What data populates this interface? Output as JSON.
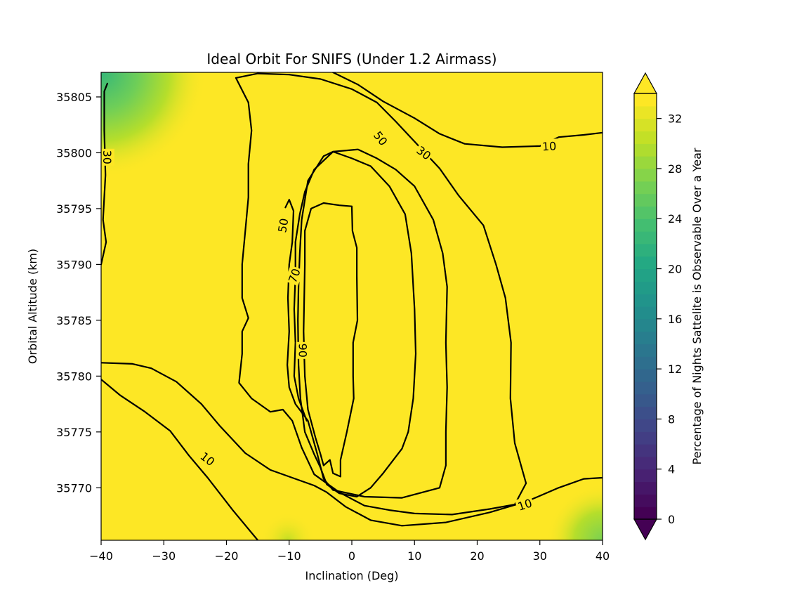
{
  "chart_data": {
    "type": "heatmap",
    "subtype": "filled-contour",
    "title": "Ideal Orbit For SNIFS (Under 1.2 Airmass)",
    "xlabel": "Inclination (Deg)",
    "ylabel": "Orbital Altitude (km)",
    "xlim": [
      -40,
      40
    ],
    "ylim": [
      35765.3,
      35807.2
    ],
    "xticks": [
      -40,
      -30,
      -20,
      -10,
      0,
      10,
      20,
      30,
      40
    ],
    "yticks": [
      35770,
      35775,
      35780,
      35785,
      35790,
      35795,
      35800,
      35805
    ],
    "colorbar": {
      "label": "Percentage of Nights Sattelite is Observable Over a Year",
      "ticks": [
        0,
        4,
        8,
        12,
        16,
        20,
        24,
        28,
        32
      ],
      "range": [
        0,
        34
      ],
      "colormap": "viridis",
      "extend": "both"
    },
    "dominant_fill_value": 34,
    "low_value_corners": [
      {
        "corner": "top-left",
        "value": 24
      },
      {
        "corner": "bottom-right",
        "value": 30
      }
    ],
    "contour_levels": [
      10,
      30,
      50,
      70,
      90
    ],
    "contours": [
      {
        "level": 10,
        "points": [
          [
            -40,
            35781.2
          ],
          [
            -35,
            35781.1
          ],
          [
            -32,
            35780.7
          ],
          [
            -28,
            35779.5
          ],
          [
            -24,
            35777.5
          ],
          [
            -21,
            35775.5
          ],
          [
            -17,
            35773.1
          ],
          [
            -13,
            35771.6
          ],
          [
            -9,
            35770.8
          ],
          [
            -6,
            35770.2
          ],
          [
            -4,
            35769.6
          ],
          [
            -1,
            35768.3
          ],
          [
            3,
            35767.1
          ],
          [
            8,
            35766.6
          ],
          [
            15,
            35766.9
          ],
          [
            22,
            35767.8
          ],
          [
            28,
            35768.8
          ],
          [
            33,
            35770.0
          ],
          [
            37,
            35770.8
          ],
          [
            40,
            35770.9
          ]
        ]
      },
      {
        "level": 10,
        "points": [
          [
            -40,
            35779.7
          ],
          [
            -37,
            35778.3
          ],
          [
            -33,
            35776.8
          ],
          [
            -29,
            35775.1
          ],
          [
            -26,
            35772.9
          ],
          [
            -23,
            35770.9
          ],
          [
            -19,
            35768.0
          ],
          [
            -15,
            35765.3
          ]
        ]
      },
      {
        "level": 10,
        "points": [
          [
            -3,
            35807.2
          ],
          [
            1,
            35806.1
          ],
          [
            5,
            35804.6
          ],
          [
            10,
            35803.1
          ],
          [
            14,
            35801.7
          ],
          [
            18,
            35800.8
          ],
          [
            24,
            35800.5
          ],
          [
            30,
            35800.6
          ],
          [
            33,
            35801.4
          ],
          [
            37,
            35801.6
          ],
          [
            40,
            35801.8
          ]
        ]
      },
      {
        "level": 30,
        "points": [
          [
            -39,
            35806.2
          ],
          [
            -39.5,
            35805.5
          ],
          [
            -39.5,
            35802
          ],
          [
            -39.3,
            35798
          ],
          [
            -39.7,
            35794
          ],
          [
            -39.2,
            35792
          ],
          [
            -40,
            35790
          ]
        ]
      },
      {
        "level": 30,
        "points": [
          [
            -18.5,
            35806.7
          ],
          [
            -15,
            35807.1
          ],
          [
            -10,
            35807.0
          ],
          [
            -5,
            35806.6
          ],
          [
            0,
            35805.7
          ],
          [
            4,
            35804.5
          ],
          [
            7,
            35802.8
          ],
          [
            10,
            35801.0
          ],
          [
            14,
            35798.6
          ],
          [
            17,
            35796.2
          ],
          [
            21,
            35793.5
          ],
          [
            23,
            35790.0
          ],
          [
            24.5,
            35787.0
          ],
          [
            25.4,
            35783.0
          ],
          [
            25.3,
            35778.0
          ],
          [
            26.0,
            35774.0
          ],
          [
            27.8,
            35770.4
          ],
          [
            26,
            35768.5
          ],
          [
            22,
            35768.1
          ],
          [
            16,
            35767.6
          ],
          [
            10,
            35767.7
          ],
          [
            6,
            35768.0
          ],
          [
            2,
            35768.4
          ],
          [
            -2,
            35769.6
          ],
          [
            -6,
            35771.2
          ],
          [
            -8,
            35773.6
          ],
          [
            -9.5,
            35776.0
          ],
          [
            -11,
            35777.0
          ],
          [
            -13,
            35776.8
          ],
          [
            -16,
            35778.0
          ],
          [
            -18,
            35779.4
          ],
          [
            -17.5,
            35782.0
          ],
          [
            -17.5,
            35784.0
          ],
          [
            -16.5,
            35785.2
          ],
          [
            -17.5,
            35787.0
          ],
          [
            -17.5,
            35790.0
          ],
          [
            -17.0,
            35793.0
          ],
          [
            -16.5,
            35796.0
          ],
          [
            -16.5,
            35799.0
          ],
          [
            -16.0,
            35802.0
          ],
          [
            -16.5,
            35804.5
          ],
          [
            -18.5,
            35806.7
          ]
        ]
      },
      {
        "level": 50,
        "points": [
          [
            -10.6,
            35795.1
          ],
          [
            -10.0,
            35795.8
          ],
          [
            -9.3,
            35794.8
          ],
          [
            -9.5,
            35792.0
          ],
          [
            -10.0,
            35790.0
          ],
          [
            -10.2,
            35787.0
          ],
          [
            -10.0,
            35784.0
          ],
          [
            -10.3,
            35781.0
          ],
          [
            -10.0,
            35779.0
          ],
          [
            -9.0,
            35777.5
          ],
          [
            -7.0,
            35776.0
          ],
          [
            -5.5,
            35773.0
          ],
          [
            -4.5,
            35770.8
          ],
          [
            -3.0,
            35769.8
          ],
          [
            2.0,
            35769.2
          ],
          [
            8.0,
            35769.1
          ],
          [
            14.0,
            35770.0
          ],
          [
            15.0,
            35772.0
          ],
          [
            15.0,
            35775.0
          ],
          [
            15.2,
            35779.0
          ],
          [
            15.0,
            35783.0
          ],
          [
            15.2,
            35788.0
          ],
          [
            14.5,
            35791.0
          ],
          [
            13.0,
            35794.0
          ],
          [
            10.0,
            35797.0
          ],
          [
            7.0,
            35798.5
          ],
          [
            4.0,
            35799.5
          ],
          [
            1.0,
            35800.3
          ],
          [
            -3.0,
            35800.1
          ],
          [
            -6.0,
            35798.5
          ],
          [
            -7.5,
            35796.5
          ],
          [
            -8.3,
            35794.5
          ],
          [
            -9.0,
            35792.0
          ],
          [
            -9.0,
            35789.0
          ],
          [
            -9.2,
            35786.0
          ],
          [
            -9.0,
            35783.0
          ],
          [
            -9.2,
            35780.0
          ],
          [
            -8.5,
            35778.0
          ],
          [
            -7.2,
            35776.0
          ]
        ]
      },
      {
        "level": 70,
        "points": [
          [
            -8.3,
            35791.0
          ],
          [
            -8.0,
            35794.0
          ],
          [
            -7.0,
            35797.5
          ],
          [
            -4.5,
            35799.7
          ],
          [
            -3.0,
            35800.1
          ],
          [
            0,
            35799.5
          ],
          [
            3.0,
            35798.8
          ],
          [
            6.0,
            35797.0
          ],
          [
            8.5,
            35794.5
          ],
          [
            9.5,
            35791.0
          ],
          [
            10.0,
            35786.0
          ],
          [
            10.2,
            35782.0
          ],
          [
            9.8,
            35778.0
          ],
          [
            9.0,
            35775.0
          ],
          [
            8.0,
            35773.5
          ],
          [
            5.0,
            35771.3
          ],
          [
            3.0,
            35770.0
          ],
          [
            0.8,
            35769.2
          ],
          [
            -2.0,
            35769.5
          ],
          [
            -4.0,
            35770.3
          ],
          [
            -5.0,
            35771.8
          ],
          [
            -6.0,
            35773.0
          ],
          [
            -7.5,
            35775.0
          ],
          [
            -8.2,
            35778.0
          ],
          [
            -8.5,
            35781.0
          ],
          [
            -8.6,
            35785.0
          ],
          [
            -8.5,
            35788.0
          ],
          [
            -8.3,
            35791.0
          ]
        ]
      },
      {
        "level": 90,
        "points": [
          [
            -7.7,
            35784.0
          ],
          [
            -7.5,
            35790.0
          ],
          [
            -7.5,
            35793.0
          ],
          [
            -6.5,
            35795.0
          ],
          [
            -4.5,
            35795.5
          ],
          [
            -2.0,
            35795.3
          ],
          [
            0,
            35795.2
          ],
          [
            0.1,
            35793.0
          ],
          [
            0.8,
            35791.5
          ],
          [
            0.8,
            35789.0
          ],
          [
            0.9,
            35785.0
          ],
          [
            0.2,
            35783.0
          ],
          [
            0.2,
            35780.0
          ],
          [
            0.3,
            35778.0
          ],
          [
            -0.8,
            35775.0
          ],
          [
            -1.8,
            35772.5
          ],
          [
            -1.8,
            35771.0
          ],
          [
            -3.0,
            35771.3
          ],
          [
            -3.5,
            35772.5
          ],
          [
            -4.5,
            35772.0
          ],
          [
            -5.0,
            35773.0
          ],
          [
            -5.8,
            35774.5
          ],
          [
            -7.0,
            35777.0
          ],
          [
            -7.5,
            35780.0
          ],
          [
            -7.7,
            35784.0
          ]
        ]
      }
    ],
    "contour_labels": [
      {
        "text": "10",
        "level": 10,
        "x": 31.5,
        "y": 35800.6,
        "angle": -3
      },
      {
        "text": "10",
        "level": 10,
        "x": 27.6,
        "y": 35768.5,
        "angle": -18
      },
      {
        "text": "10",
        "level": 10,
        "x": -23.0,
        "y": 35772.6,
        "angle": 38
      },
      {
        "text": "30",
        "level": 30,
        "x": -39.0,
        "y": 35799.6,
        "angle": 90
      },
      {
        "text": "30",
        "level": 30,
        "x": 11.5,
        "y": 35800.0,
        "angle": 37
      },
      {
        "text": "50",
        "level": 50,
        "x": 4.6,
        "y": 35801.3,
        "angle": 52
      },
      {
        "text": "50",
        "level": 50,
        "x": -11.0,
        "y": 35793.5,
        "angle": -80
      },
      {
        "text": "70",
        "level": 70,
        "x": -9.2,
        "y": 35789.0,
        "angle": -70
      },
      {
        "text": "90",
        "level": 90,
        "x": -7.8,
        "y": 35782.3,
        "angle": 90
      }
    ]
  }
}
